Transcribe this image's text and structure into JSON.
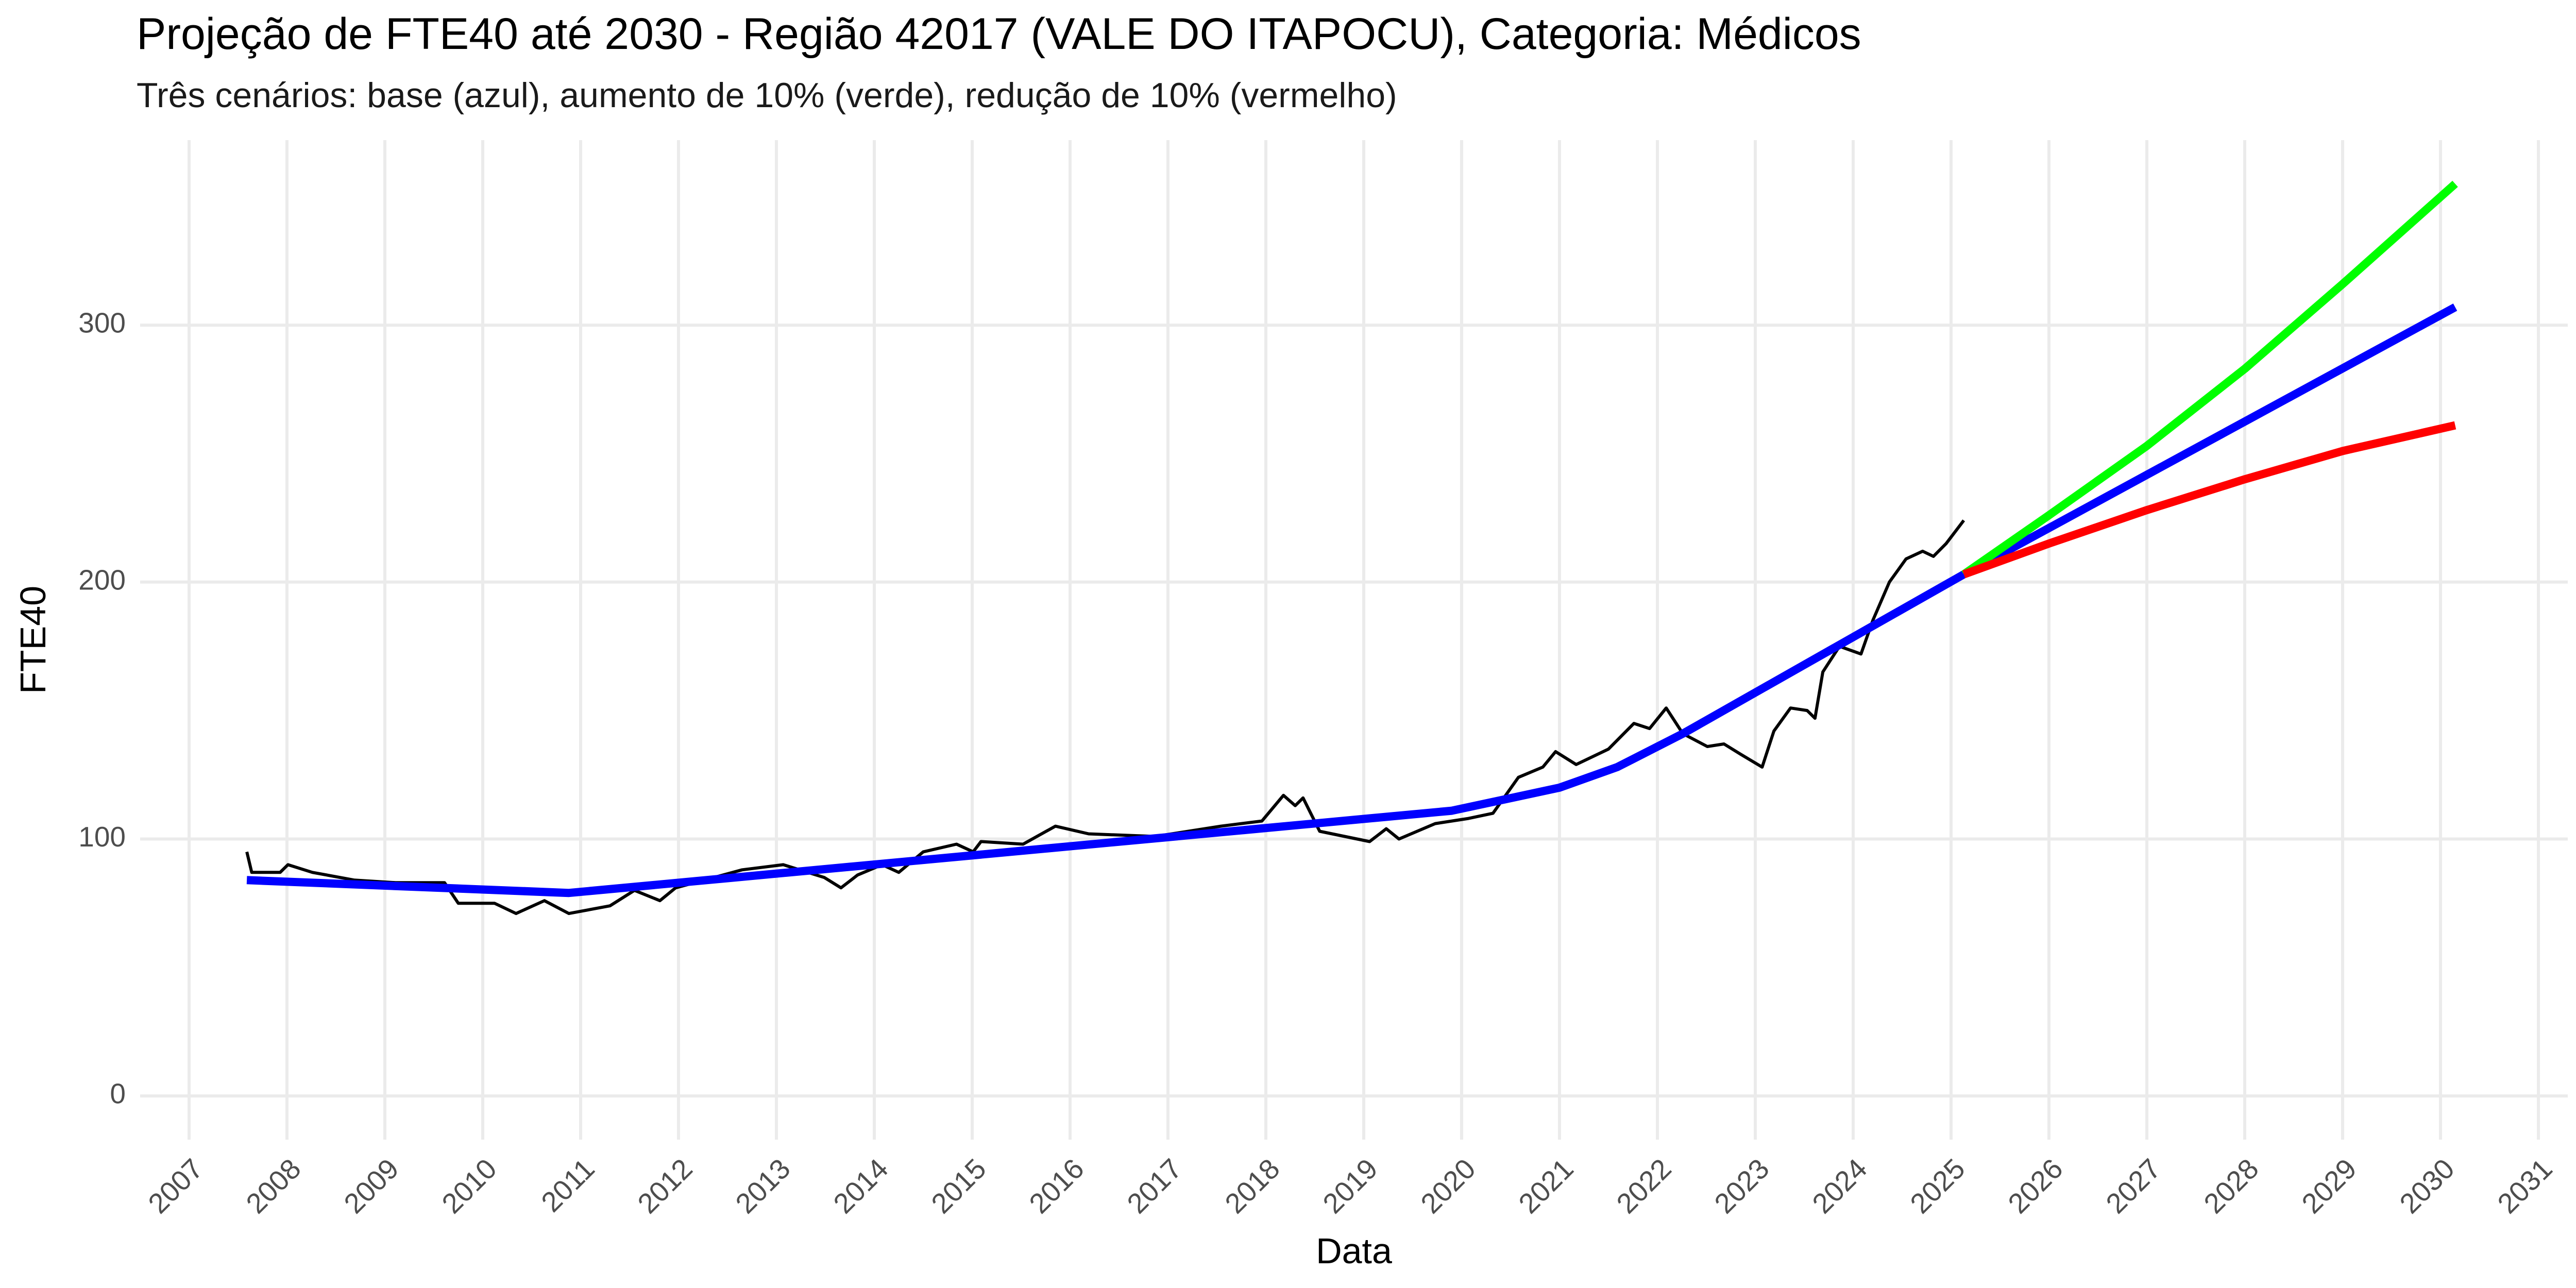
{
  "chart_data": {
    "type": "line",
    "title": "Projeção de FTE40 até 2030 - Região 42017 (VALE DO ITAPOCU), Categoria: Médicos",
    "subtitle": "Três cenários: base (azul), aumento de 10% (verde), redução de 10% (vermelho)",
    "x_label": "Data",
    "y_label": "FTE40",
    "xlim": [
      2006.5,
      2031.3
    ],
    "ylim": [
      -17,
      372
    ],
    "xticks": [
      2007,
      2008,
      2009,
      2010,
      2011,
      2012,
      2013,
      2014,
      2015,
      2016,
      2017,
      2018,
      2019,
      2020,
      2021,
      2022,
      2023,
      2024,
      2025,
      2026,
      2027,
      2028,
      2029,
      2030,
      2031
    ],
    "yticks": [
      0,
      100,
      200,
      300
    ],
    "grid": true,
    "series": [
      {
        "color": "#000000",
        "x": [
          2007.59,
          2007.64,
          2007.93,
          2008.01,
          2008.26,
          2008.69,
          2009.11,
          2009.61,
          2009.75,
          2010.12,
          2010.34,
          2010.63,
          2010.88,
          2011.3,
          2011.55,
          2011.81,
          2011.97,
          2012.65,
          2013.07,
          2013.49,
          2013.66,
          2013.83,
          2014.08,
          2014.25,
          2014.5,
          2014.84,
          2015.01,
          2015.09,
          2015.52,
          2015.85,
          2016.19,
          2016.87,
          2017.54,
          2017.96,
          2018.18,
          2018.3,
          2018.38,
          2018.55,
          2019.06,
          2019.23,
          2019.36,
          2019.73,
          2020.07,
          2020.32,
          2020.58,
          2020.83,
          2020.96,
          2021.17,
          2021.5,
          2021.76,
          2021.92,
          2022.09,
          2022.26,
          2022.51,
          2022.68,
          2022.85,
          2023.07,
          2023.19,
          2023.36,
          2023.53,
          2023.61,
          2023.69,
          2023.86,
          2024.08,
          2024.2,
          2024.37,
          2024.54,
          2024.71,
          2024.82,
          2024.95,
          2025.13
        ],
        "values": [
          95,
          87,
          87,
          90,
          87,
          84,
          83,
          83,
          75,
          75,
          71,
          76,
          71,
          74,
          80,
          76,
          81,
          88,
          90,
          85,
          81,
          86,
          90,
          87,
          95,
          98,
          95,
          99,
          98,
          105,
          102,
          101,
          105,
          107,
          117,
          113,
          116,
          103,
          99,
          104,
          100,
          106,
          108,
          110,
          124,
          128,
          134,
          129,
          135,
          145,
          143,
          151,
          141,
          136,
          137,
          133,
          128,
          142,
          151,
          150,
          147,
          165,
          175,
          172,
          185,
          200,
          209,
          212,
          210,
          215,
          224
        ]
      },
      {
        "color": "#0000ff",
        "x": [
          2007.59,
          2010.88,
          2019.9,
          2021.0,
          2021.59,
          2022.26,
          2025.13,
          2030.15
        ],
        "values": [
          84,
          79,
          111,
          120,
          128,
          141,
          203,
          307
        ]
      },
      {
        "color": "#00ff00",
        "x": [
          2025.13,
          2026,
          2027,
          2028,
          2029,
          2030.15
        ],
        "values": [
          203,
          226,
          253,
          283,
          316,
          355
        ]
      },
      {
        "color": "#ff0000",
        "x": [
          2025.13,
          2026,
          2027,
          2028,
          2029,
          2030.15
        ],
        "values": [
          203,
          215,
          228,
          240,
          251,
          261
        ]
      }
    ]
  }
}
